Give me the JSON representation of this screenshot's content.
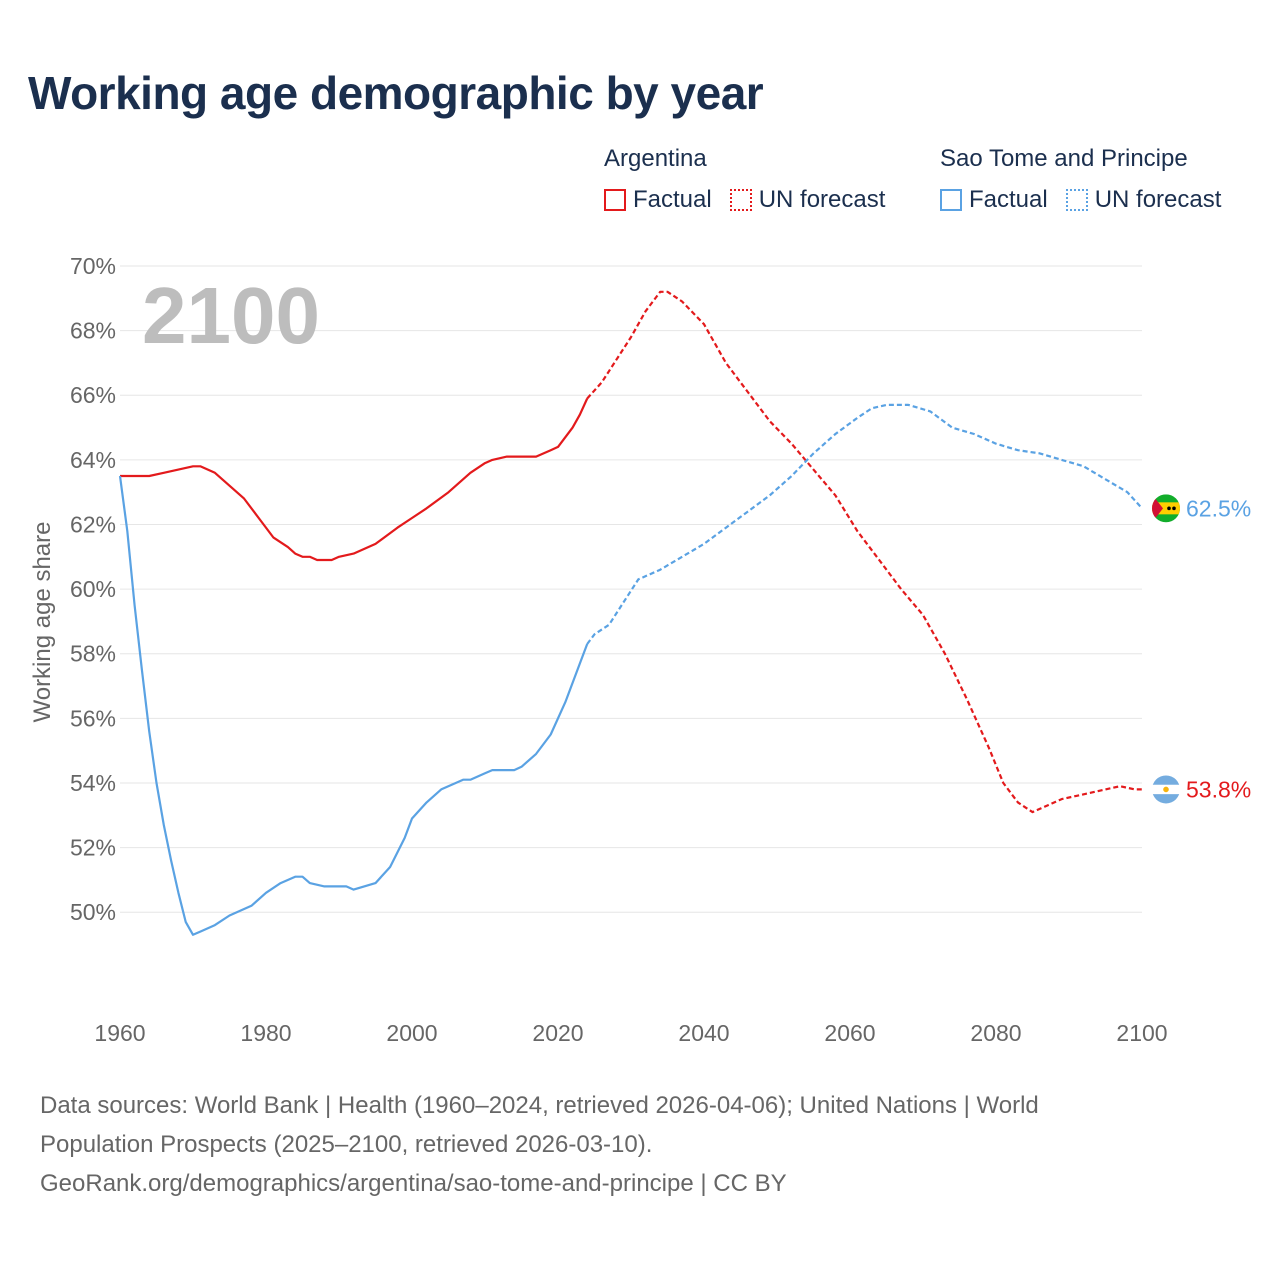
{
  "title": "Working age demographic by year",
  "legend": {
    "groups": [
      {
        "name": "Argentina",
        "color": "#e31a1c",
        "factual_label": "Factual",
        "forecast_label": "UN forecast"
      },
      {
        "name": "Sao Tome and Principe",
        "color": "#5aa2e3",
        "factual_label": "Factual",
        "forecast_label": "UN forecast"
      }
    ]
  },
  "footer": {
    "line1": "Data sources: World Bank | Health (1960–2024, retrieved 2026-04-06); United Nations | World",
    "line2": "Population Prospects (2025–2100, retrieved 2026-03-10).",
    "line3": "GeoRank.org/demographics/argentina/sao-tome-and-principe | CC BY"
  },
  "chart_data": {
    "type": "line",
    "title": "Working age demographic by year",
    "ylabel": "Working age share",
    "xlabel": "",
    "xlim": [
      1960,
      2100
    ],
    "ylim": [
      47.5,
      70
    ],
    "x_ticks": [
      1960,
      1980,
      2000,
      2020,
      2040,
      2060,
      2080,
      2100
    ],
    "y_ticks": [
      50,
      52,
      54,
      56,
      58,
      60,
      62,
      64,
      66,
      68,
      70
    ],
    "y_tick_labels": [
      "50%",
      "52%",
      "54%",
      "56%",
      "58%",
      "60%",
      "62%",
      "64%",
      "66%",
      "68%",
      "70%"
    ],
    "grid": true,
    "current_year_label": "2100",
    "factual_range": [
      1960,
      2024
    ],
    "forecast_range": [
      2024,
      2100
    ],
    "series": [
      {
        "name": "Argentina",
        "color": "#e31a1c",
        "end_label": "53.8%",
        "flag": "argentina-flag",
        "points": [
          [
            1960,
            63.5
          ],
          [
            1964,
            63.5
          ],
          [
            1966,
            63.6
          ],
          [
            1968,
            63.7
          ],
          [
            1970,
            63.8
          ],
          [
            1971,
            63.8
          ],
          [
            1973,
            63.6
          ],
          [
            1975,
            63.2
          ],
          [
            1977,
            62.8
          ],
          [
            1979,
            62.2
          ],
          [
            1981,
            61.6
          ],
          [
            1983,
            61.3
          ],
          [
            1984,
            61.1
          ],
          [
            1985,
            61.0
          ],
          [
            1986,
            61.0
          ],
          [
            1987,
            60.9
          ],
          [
            1989,
            60.9
          ],
          [
            1990,
            61.0
          ],
          [
            1992,
            61.1
          ],
          [
            1995,
            61.4
          ],
          [
            1998,
            61.9
          ],
          [
            2000,
            62.2
          ],
          [
            2002,
            62.5
          ],
          [
            2005,
            63.0
          ],
          [
            2008,
            63.6
          ],
          [
            2010,
            63.9
          ],
          [
            2011,
            64.0
          ],
          [
            2013,
            64.1
          ],
          [
            2014,
            64.1
          ],
          [
            2017,
            64.1
          ],
          [
            2019,
            64.3
          ],
          [
            2020,
            64.4
          ],
          [
            2022,
            65.0
          ],
          [
            2023,
            65.4
          ],
          [
            2024,
            65.9
          ],
          [
            2026,
            66.4
          ],
          [
            2028,
            67.1
          ],
          [
            2030,
            67.8
          ],
          [
            2032,
            68.6
          ],
          [
            2034,
            69.2
          ],
          [
            2035,
            69.2
          ],
          [
            2037,
            68.9
          ],
          [
            2040,
            68.2
          ],
          [
            2043,
            67.0
          ],
          [
            2046,
            66.1
          ],
          [
            2049,
            65.2
          ],
          [
            2052,
            64.5
          ],
          [
            2055,
            63.7
          ],
          [
            2058,
            62.9
          ],
          [
            2061,
            61.8
          ],
          [
            2064,
            60.9
          ],
          [
            2067,
            60.0
          ],
          [
            2070,
            59.2
          ],
          [
            2073,
            58.0
          ],
          [
            2076,
            56.6
          ],
          [
            2079,
            55.1
          ],
          [
            2081,
            54.0
          ],
          [
            2083,
            53.4
          ],
          [
            2085,
            53.1
          ],
          [
            2087,
            53.3
          ],
          [
            2089,
            53.5
          ],
          [
            2091,
            53.6
          ],
          [
            2093,
            53.7
          ],
          [
            2095,
            53.8
          ],
          [
            2097,
            53.9
          ],
          [
            2099,
            53.8
          ],
          [
            2100,
            53.8
          ]
        ]
      },
      {
        "name": "Sao Tome and Principe",
        "color": "#5aa2e3",
        "end_label": "62.5%",
        "flag": "sao-tome-and-principe-flag",
        "points": [
          [
            1960,
            63.5
          ],
          [
            1961,
            61.8
          ],
          [
            1962,
            59.5
          ],
          [
            1963,
            57.5
          ],
          [
            1964,
            55.6
          ],
          [
            1965,
            54.0
          ],
          [
            1966,
            52.7
          ],
          [
            1967,
            51.6
          ],
          [
            1968,
            50.6
          ],
          [
            1969,
            49.7
          ],
          [
            1970,
            49.3
          ],
          [
            1971,
            49.4
          ],
          [
            1973,
            49.6
          ],
          [
            1975,
            49.9
          ],
          [
            1978,
            50.2
          ],
          [
            1980,
            50.6
          ],
          [
            1982,
            50.9
          ],
          [
            1984,
            51.1
          ],
          [
            1985,
            51.1
          ],
          [
            1986,
            50.9
          ],
          [
            1988,
            50.8
          ],
          [
            1991,
            50.8
          ],
          [
            1992,
            50.7
          ],
          [
            1995,
            50.9
          ],
          [
            1997,
            51.4
          ],
          [
            1999,
            52.3
          ],
          [
            2000,
            52.9
          ],
          [
            2002,
            53.4
          ],
          [
            2004,
            53.8
          ],
          [
            2007,
            54.1
          ],
          [
            2008,
            54.1
          ],
          [
            2010,
            54.3
          ],
          [
            2011,
            54.4
          ],
          [
            2014,
            54.4
          ],
          [
            2015,
            54.5
          ],
          [
            2017,
            54.9
          ],
          [
            2019,
            55.5
          ],
          [
            2021,
            56.5
          ],
          [
            2023,
            57.7
          ],
          [
            2024,
            58.3
          ],
          [
            2025,
            58.6
          ],
          [
            2027,
            58.9
          ],
          [
            2029,
            59.6
          ],
          [
            2031,
            60.3
          ],
          [
            2034,
            60.6
          ],
          [
            2037,
            61.0
          ],
          [
            2040,
            61.4
          ],
          [
            2043,
            61.9
          ],
          [
            2046,
            62.4
          ],
          [
            2049,
            62.9
          ],
          [
            2052,
            63.5
          ],
          [
            2055,
            64.2
          ],
          [
            2058,
            64.8
          ],
          [
            2061,
            65.3
          ],
          [
            2063,
            65.6
          ],
          [
            2065,
            65.7
          ],
          [
            2068,
            65.7
          ],
          [
            2071,
            65.5
          ],
          [
            2074,
            65.0
          ],
          [
            2077,
            64.8
          ],
          [
            2080,
            64.5
          ],
          [
            2083,
            64.3
          ],
          [
            2086,
            64.2
          ],
          [
            2089,
            64.0
          ],
          [
            2092,
            63.8
          ],
          [
            2095,
            63.4
          ],
          [
            2098,
            63.0
          ],
          [
            2100,
            62.5
          ]
        ]
      }
    ]
  }
}
